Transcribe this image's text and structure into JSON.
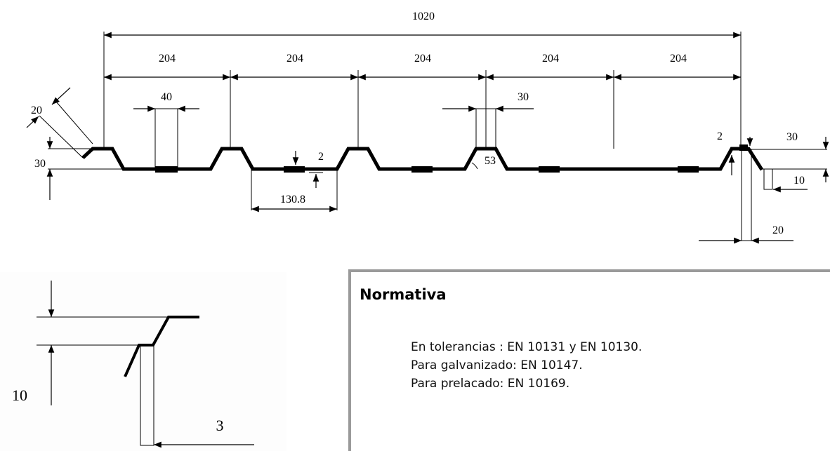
{
  "drawing": {
    "total_width": "1020",
    "module_widths": [
      "204",
      "204",
      "204",
      "204",
      "204"
    ],
    "crest_width": "40",
    "crest_width_2": "30",
    "left_height": "30",
    "left_lip": "20",
    "rib_height": "2",
    "valley_span": "130.8",
    "angle": "53",
    "right_rib": "2",
    "right_height": "30",
    "right_lip": "10",
    "right_lip_width": "20"
  },
  "detail": {
    "height": "10",
    "width": "3"
  },
  "normativa": {
    "title": "Normativa",
    "lines": [
      "En tolerancias : EN 10131 y EN 10130.",
      "Para galvanizado: EN 10147.",
      "Para prelacado: EN 10169."
    ]
  }
}
